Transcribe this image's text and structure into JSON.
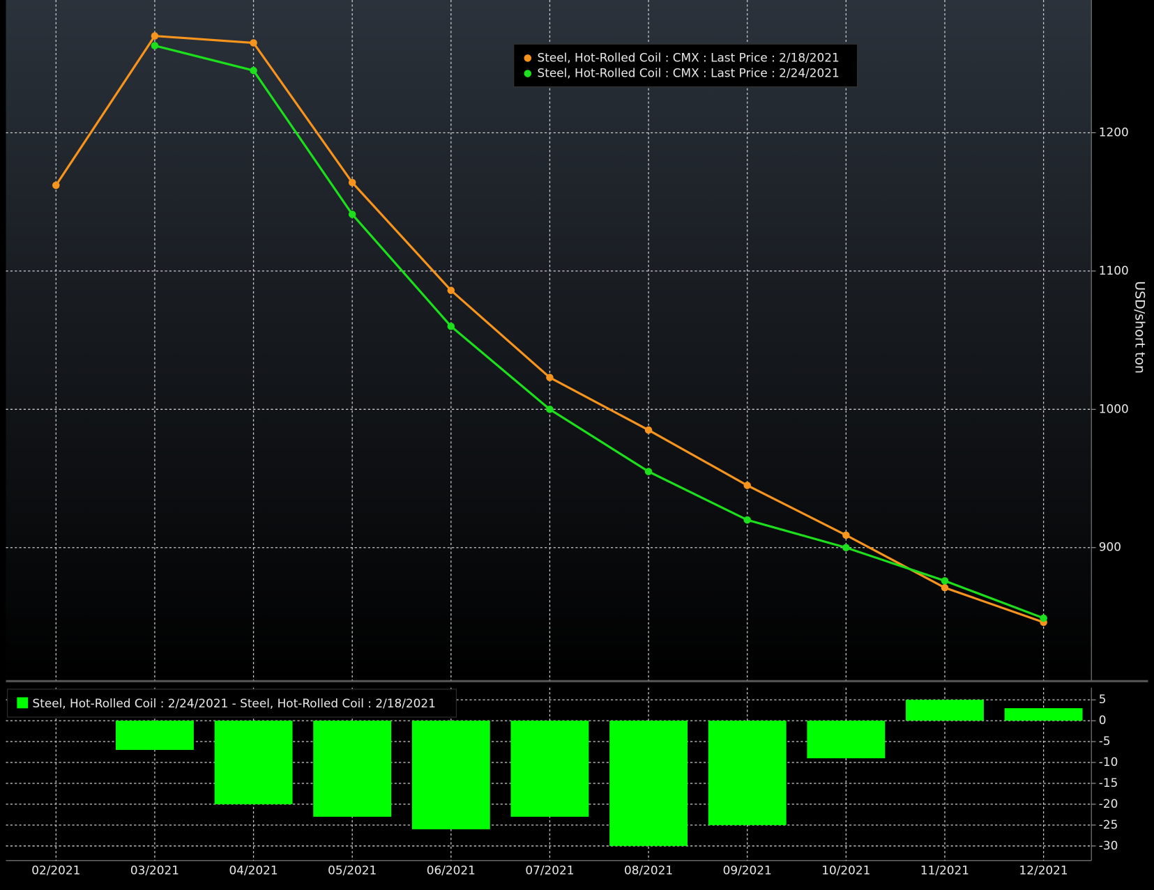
{
  "chart_data": [
    {
      "type": "line",
      "y_label": "USD/short ton",
      "categories": [
        "02/2021",
        "03/2021",
        "04/2021",
        "05/2021",
        "06/2021",
        "07/2021",
        "08/2021",
        "09/2021",
        "10/2021",
        "11/2021",
        "12/2021"
      ],
      "series": [
        {
          "name": "Steel, Hot-Rolled Coil : CMX : Last Price : 2/18/2021",
          "color": "#f7941d",
          "values": [
            1162,
            1270,
            1265,
            1164,
            1086,
            1023,
            985,
            945,
            909,
            871,
            846
          ]
        },
        {
          "name": "Steel, Hot-Rolled Coil : CMX : Last Price : 2/24/2021",
          "color": "#1be01b",
          "values": [
            null,
            1263,
            1245,
            1141,
            1060,
            1000,
            955,
            920,
            900,
            876,
            849
          ]
        }
      ],
      "ylim": [
        804,
        1296
      ],
      "yticks": [
        900,
        1000,
        1100,
        1200
      ],
      "grid": true,
      "legend": "top-center"
    },
    {
      "type": "bar",
      "series": [
        {
          "name": "Steel, Hot-Rolled Coil : 2/24/2021 - Steel, Hot-Rolled Coil : 2/18/2021",
          "color": "#00ff00",
          "values": [
            null,
            -7,
            -20,
            -23,
            -26,
            -23,
            -30,
            -25,
            -9,
            5,
            3
          ]
        }
      ],
      "ylim": [
        -33.5,
        7.9
      ],
      "yticks": [
        5,
        0,
        -5,
        -10,
        -15,
        -20,
        -25,
        -30
      ],
      "grid": true,
      "legend": "top-left"
    }
  ]
}
